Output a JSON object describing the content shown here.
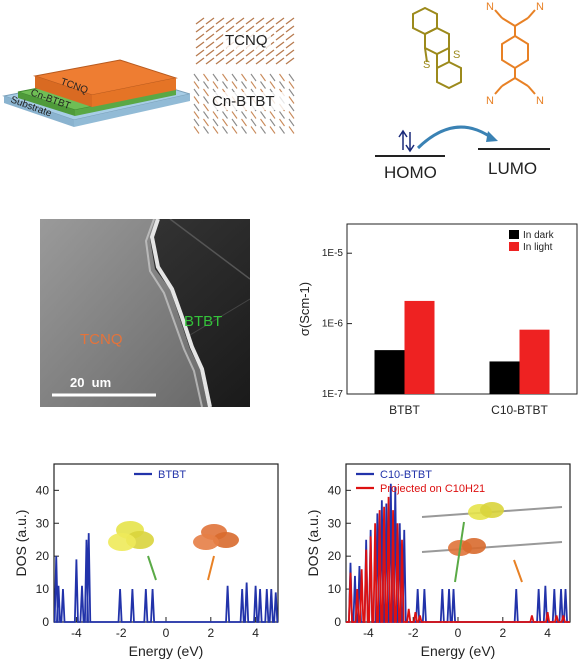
{
  "device_stack": {
    "layers": [
      "TCNQ",
      "Cn-BTBT",
      "Substrate"
    ],
    "colors": {
      "tcnq": "#ee7d32",
      "btbt": "#5aaa46",
      "substrate": "#a7cde6"
    }
  },
  "crystal": {
    "top_label": "TCNQ",
    "bottom_label": "Cn-BTBT"
  },
  "molecules": {
    "btbt_color": "#9c8a1c",
    "tcnq_color": "#e88125",
    "atom_S": "S",
    "atom_N": "N"
  },
  "energy": {
    "homo": "HOMO",
    "lumo": "LUMO"
  },
  "sem": {
    "label_tcnq": "TCNQ",
    "label_btbt": "BTBT",
    "scale_bar": "20  um"
  },
  "chart_data": [
    {
      "type": "bar",
      "categories": [
        "BTBT",
        "C10-BTBT"
      ],
      "series": [
        {
          "name": "In dark",
          "values": [
            4.2e-07,
            2.9e-07
          ],
          "color": "#000000"
        },
        {
          "name": "In light",
          "values": [
            2.1e-06,
            8.2e-07
          ],
          "color": "#ee2222"
        }
      ],
      "ylabel": "σ(Scm-1)",
      "yscale": "log",
      "ylim": [
        1e-07,
        2.6e-05
      ],
      "yticks": [
        "1E-7",
        "1E-6",
        "1E-5"
      ],
      "legend": "top-right"
    },
    {
      "type": "line",
      "series": [
        {
          "name": "BTBT",
          "color": "#2233aa"
        }
      ],
      "x_peaks": [
        -4.9,
        -4.8,
        -4.6,
        -4.0,
        -3.75,
        -3.55,
        -3.45,
        -2.05,
        -1.5,
        -0.9,
        -0.6,
        2.75,
        3.4,
        3.6,
        4.0,
        4.2,
        4.5,
        4.7,
        4.9
      ],
      "y_peaks": [
        20,
        11,
        10,
        19,
        11,
        25,
        27,
        10,
        10,
        10,
        10,
        11,
        10,
        12,
        11,
        10,
        10,
        10,
        9
      ],
      "xlabel": "Energy (eV)",
      "ylabel": "DOS (a.u.)",
      "xlim": [
        -5,
        5
      ],
      "ylim": [
        0,
        48
      ],
      "xticks": [
        "-4",
        "-2",
        "0",
        "2",
        "4"
      ],
      "yticks": [
        "0",
        "10",
        "20",
        "30",
        "40"
      ]
    },
    {
      "type": "line",
      "series": [
        {
          "name": "C10-BTBT",
          "color": "#2233aa",
          "x_peaks": [
            -4.8,
            -4.6,
            -4.4,
            -4.1,
            -3.9,
            -3.6,
            -3.4,
            -3.2,
            -3.0,
            -2.8,
            -2.6,
            -2.4,
            -1.8,
            -1.5,
            -0.7,
            -0.4,
            -0.2,
            2.6,
            3.6,
            3.9,
            4.3,
            4.6,
            4.8
          ],
          "y_peaks": [
            18,
            14,
            17,
            25,
            28,
            33,
            37,
            36,
            42,
            41,
            30,
            28,
            10,
            10,
            10,
            10,
            10,
            10,
            10,
            11,
            10,
            10,
            10
          ]
        },
        {
          "name": "Projected on C10H21",
          "color": "#dd1111",
          "x_peaks": [
            -4.8,
            -4.5,
            -4.3,
            -4.1,
            -3.9,
            -3.7,
            -3.5,
            -3.3,
            -3.1,
            -2.9,
            -2.7,
            -2.5,
            -2.2,
            -1.9,
            -1.7,
            3.3,
            4.0,
            4.4,
            4.7
          ],
          "y_peaks": [
            15,
            10,
            16,
            22,
            26,
            30,
            34,
            35,
            38,
            34,
            30,
            25,
            4,
            3,
            2,
            2,
            3,
            2,
            2
          ]
        }
      ],
      "legend_labels": [
        "C10-BTBT",
        "Projected on C10H21"
      ],
      "xlabel": "Energy (eV)",
      "ylabel": "DOS (a.u.)",
      "xlim": [
        -5,
        5
      ],
      "ylim": [
        0,
        48
      ],
      "xticks": [
        "-4",
        "-2",
        "0",
        "2",
        "4"
      ],
      "yticks": [
        "0",
        "10",
        "20",
        "30",
        "40"
      ]
    }
  ]
}
